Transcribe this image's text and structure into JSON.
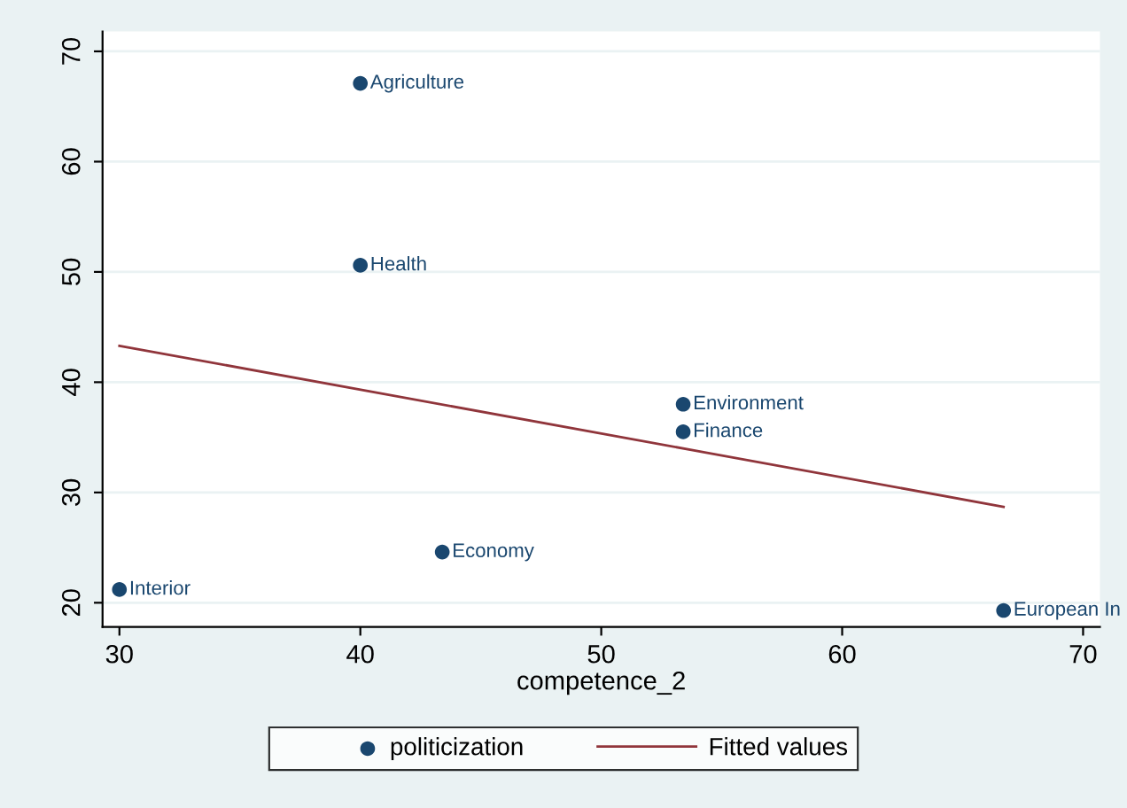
{
  "chart_data": {
    "type": "scatter",
    "xlabel": "competence_2",
    "xlim": [
      29.3,
      70.7
    ],
    "ylim": [
      17.8,
      71.8
    ],
    "xticks": [
      30,
      40,
      50,
      60,
      70
    ],
    "yticks": [
      20,
      30,
      40,
      50,
      60,
      70
    ],
    "grid": "y",
    "legend": "bottom",
    "marker": "circle",
    "series": [
      {
        "name": "politicization",
        "color": "#1a476f",
        "x": [
          40,
          40,
          53.4,
          53.4,
          43.4,
          30,
          66.7
        ],
        "values": [
          67.1,
          50.6,
          38.0,
          35.5,
          24.6,
          21.2,
          19.3
        ]
      },
      {
        "name": "Fitted values",
        "type": "line",
        "color": "#90353b",
        "line_style": "solid",
        "marker": "none",
        "x": [
          30,
          66.7
        ],
        "values": [
          43.3,
          28.7
        ]
      }
    ],
    "annotations": [
      {
        "text": "Agriculture",
        "x": 40,
        "y": 67.1
      },
      {
        "text": "Health",
        "x": 40,
        "y": 50.6
      },
      {
        "text": "Environment",
        "x": 53.4,
        "y": 38.0
      },
      {
        "text": "Finance",
        "x": 53.4,
        "y": 35.5
      },
      {
        "text": "Economy",
        "x": 43.4,
        "y": 24.6
      },
      {
        "text": "Interior",
        "x": 30,
        "y": 21.2
      },
      {
        "text": "European In",
        "x": 66.7,
        "y": 19.3
      }
    ]
  }
}
